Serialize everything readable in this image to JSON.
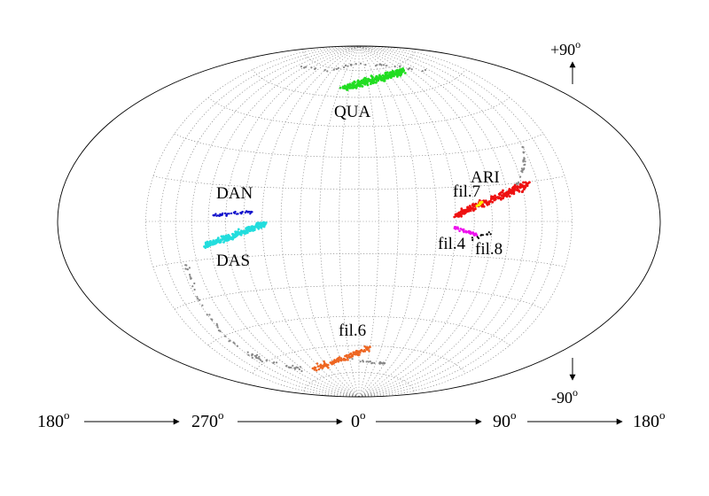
{
  "groups": [
    {
      "id": "QUA",
      "label": "QUA",
      "color": "#22dd22"
    },
    {
      "id": "ARI",
      "label": "ARI",
      "color": "#ee1111"
    },
    {
      "id": "fil7",
      "label": "fil.7",
      "color": "#ffee00"
    },
    {
      "id": "fil4",
      "label": "fil.4",
      "color": "#ee11ee"
    },
    {
      "id": "fil8",
      "label": "fil.8",
      "color": "#000000"
    },
    {
      "id": "DAN",
      "label": "DAN",
      "color": "#1111cc"
    },
    {
      "id": "DAS",
      "label": "DAS",
      "color": "#22dddd"
    },
    {
      "id": "fil6",
      "label": "fil.6",
      "color": "#ee6622"
    }
  ],
  "background_points_color": "#888888",
  "grid_color": "#777777",
  "lat_labels": {
    "north": {
      "value": "+90",
      "sup": "o"
    },
    "south": {
      "value": "-90",
      "sup": "o"
    }
  },
  "lon_axis": [
    {
      "value": "180",
      "sup": "o"
    },
    {
      "value": "270",
      "sup": "o"
    },
    {
      "value": "0",
      "sup": "o"
    },
    {
      "value": "90",
      "sup": "o"
    },
    {
      "value": "180",
      "sup": "o"
    }
  ]
}
